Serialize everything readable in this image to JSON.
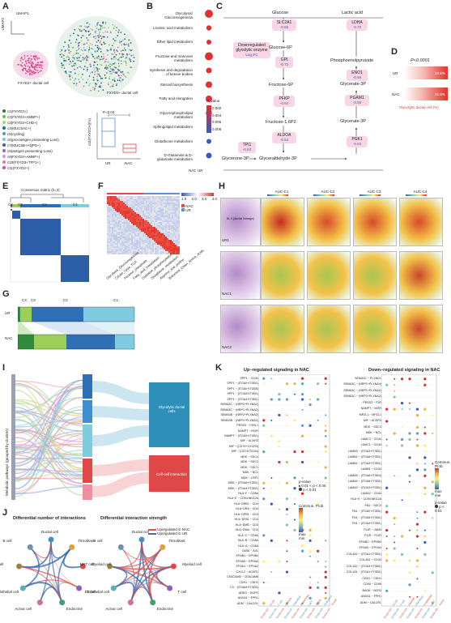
{
  "panel_labels": [
    "A",
    "B",
    "C",
    "D",
    "E",
    "F",
    "G",
    "H",
    "I",
    "J",
    "K"
  ],
  "A": {
    "axis_labels": [
      "UMAP1",
      "UMAP2"
    ],
    "annotations": [
      "FXYD2+ ductal cell",
      "FXYD3+ ductal cell"
    ],
    "legend": [
      {
        "name": "c1(FXYD3+)",
        "color": "#2a7a3b"
      },
      {
        "name": "c2(FXYD3+AMBP+)",
        "color": "#6dbb45"
      },
      {
        "name": "c3(FXYD3+CHD+)",
        "color": "#a7d670"
      },
      {
        "name": "c4(MUC5AC+)",
        "color": "#1c6e8c"
      },
      {
        "name": "c5(cycling)",
        "color": "#3fa0c0"
      },
      {
        "name": "c6(pro-antigen presenting-Loss)",
        "color": "#79c8d8"
      },
      {
        "name": "c7(MUC5B+AQP5+)",
        "color": "#3a5da8"
      },
      {
        "name": "c8(antigen presenting-Loss)",
        "color": "#8b6fb8"
      },
      {
        "name": "c9(FXYD3+AMBP+)",
        "color": "#c2a0d8"
      },
      {
        "name": "c10(FXYD3+TFF1+)",
        "color": "#e0779d"
      },
      {
        "name": "c11(FXYD2+)",
        "color": "#d94c8a"
      }
    ],
    "box": {
      "pvalue": "P=0.03",
      "ylabel": "c11(FXYD2+)(%)",
      "groups": [
        "UR",
        "NAC"
      ]
    }
  },
  "B": {
    "pathways": [
      "Glycolysis/ Gluconeogenesis",
      "Linoleic acid metabolism",
      "Ether lipid metabolism",
      "Fructose and mannose metabolism",
      "Synthesis and degradation of ketone bodies",
      "Steroid biosynthesis",
      "Fatty acid elongation",
      "Glycerophospholipid metabolism",
      "Sphingolipid metabolism",
      "Glutathione metabolism",
      "D-Glutamine & D-glutamate metabolism"
    ],
    "columns": [
      "NAC",
      "UR"
    ],
    "legend_title": "P_value",
    "legend_ticks": [
      "0.002",
      "0.004",
      "0.006",
      "0.008"
    ]
  },
  "C": {
    "top_labels": [
      "Glucose",
      "Lactic acid"
    ],
    "box_title": "Downregulated glycolytic enzyme",
    "box_sub": "Log₂FC",
    "enzymes": [
      {
        "name": "SLC2A1",
        "fc": "-0.66"
      },
      {
        "name": "GPI",
        "fc": "-0.72"
      },
      {
        "name": "PFKP",
        "fc": "-0.64"
      },
      {
        "name": "ALDOA",
        "fc": "-0.54"
      },
      {
        "name": "TPI1",
        "fc": "-0.63"
      },
      {
        "name": "LDHA",
        "fc": "-0.70"
      },
      {
        "name": "ENO1",
        "fc": "-0.66"
      },
      {
        "name": "PGAM1",
        "fc": "-0.58"
      },
      {
        "name": "PGK1",
        "fc": "-0.54"
      }
    ],
    "metabolites": [
      "Glucose-6P",
      "Fructose-6P",
      "Fructose-1,6P2",
      "Glycerone-3P",
      "Glyceraldehyde-3P",
      "Glycerate-3P",
      "Glycerate-3P",
      "Phosphoenolpyruvate"
    ]
  },
  "D": {
    "pvalue": "P<0.0001",
    "rows": [
      {
        "label": "UR",
        "value": "19.6%"
      },
      {
        "label": "NAC",
        "value": "21.9%"
      }
    ],
    "caption": "Glycolytic ductal cell (%)"
  },
  "E": {
    "title": "Consensus matrix (k=4)",
    "clusters": [
      "C1",
      "C2",
      "C3",
      "C4"
    ]
  },
  "F": {
    "legend_ticks": [
      "1.0",
      "2.0",
      "3.0",
      "4.0"
    ],
    "legend_groups": [
      "NAC",
      "UR"
    ],
    "rows": [
      "Glycolysis_Gluconeogenesis",
      "Citrate_cycle_TCA",
      "Pentose_phosphate",
      "Fatty_acid_metabolism",
      "Oxidative_phosphorylation",
      "Glutathione_metabolism",
      "Arginine_and_proline",
      "Branched_Chain_Amino_Acids"
    ]
  },
  "G": {
    "rows": [
      "UR",
      "NAC"
    ],
    "clusters": [
      "C4",
      "C3",
      "C2",
      "C1"
    ]
  },
  "H": {
    "columns": [
      "AUC-C1",
      "AUC-C2",
      "AUC-C3",
      "AUC-C4"
    ],
    "rows": [
      "UR1",
      "NAC1",
      "NAC2"
    ],
    "he_labels": [
      "Bi-4 (ductal lineage)",
      "NA",
      "FA",
      "BA"
    ]
  },
  "I": {
    "left_axis": "Metabolic pathways (grouped by clusters)",
    "right_groups": [
      "Glycolytic ductal cells",
      "Cell-cell interaction",
      "Signaling",
      "Metabolic"
    ]
  },
  "J": {
    "titles": [
      "Differential number of interactions",
      "Differential interaction strength"
    ],
    "legend": [
      {
        "name": "Upregulated in NAC",
        "color": "#d9534f"
      },
      {
        "name": "Upregulated in UR",
        "color": "#3a6fb5"
      }
    ],
    "nodes": [
      "Ductal cell",
      "Fibroblast",
      "Myeloid cell",
      "T cell",
      "Endocrine",
      "Acinar cell",
      "Endothelial cell",
      "MKT cell",
      "B cell"
    ]
  },
  "K": {
    "titles": [
      "Up−regulated signaling in NAC",
      "Down−regulated signaling in NAC"
    ],
    "legend_title": "Commun. Prob.",
    "legend_ticks": [
      "max",
      "min"
    ],
    "pvalue_title": "p-value",
    "pvalue_items": [
      "0.01 < p < 0.05",
      "p < 0.01"
    ],
    "up_pairs": [
      "SPP1 − CD44",
      "SPP1 − (ITGAV+ITGB1)",
      "SPP1 − (ITGAV+ITGB5)",
      "SPP1 − (ITGA5+ITGB1)",
      "SPP1 − (ITGA4+ITGB1)",
      "SEMA3C − (NRP2+PLXNA2)",
      "SEMA3C − (NRP1+PLXNA2)",
      "SEMA3B − (NRP2+PLXNA2)",
      "SEMA3B − (NRP1+PLXNA2)",
      "PRSS3 − F2RL1",
      "NAMPT − INSR",
      "NAMPT − (ITGA5+ITGB1)",
      "MIF − ACKR3",
      "MIF − (CD74+CXCR4)",
      "MIF − (CD74+CD44)",
      "MDK − SDC4",
      "MDK − SDC2",
      "MDK − SDC1",
      "MDK − NCL",
      "MDK − LRP1",
      "MDK − (ITGA6+ITGB1)",
      "MDK − (ITGA4+ITGB1)",
      "HLA−F − CD8A",
      "HLA−E − CD94:NKG2A",
      "HLA−DRB1 − CD4",
      "HLA−DRA − CD4",
      "HLA−DPB1 − CD4",
      "HLA−DPA1 − CD4",
      "HLA−DMB − CD4",
      "HLA−DMA − CD4",
      "HLA−C − CD8A",
      "HLA−B − CD8A",
      "HLA−A − CD8A",
      "GAS6 − AXL",
      "EFNB1 − EPHB4",
      "EFNA5 − EPHA4",
      "EFNA1 − EPHA2",
      "CXCL2 − ACKR1",
      "CEACAM5 − CEACAM6",
      "CDH1 − CDH1",
      "C3 − (ITGAM+ITGB2)",
      "AREG − EGFR",
      "ANXA1 − FPR1",
      "ADM − CALCRL"
    ],
    "down_pairs": [
      "SEMA3C − PLXND1",
      "SEMA3C − (NRP1+PLXNA4)",
      "SEMA3C − (NRP1+PLXNA2)",
      "SEMA3C − (NRP2+PLXNA2)",
      "PRSS3 − F2R",
      "NAMPT − INSR",
      "MPZL1 − MPZL1",
      "MIF − ACKR3",
      "MDK − SDC4",
      "MDK − NCL",
      "LAMC2 − CD44",
      "LAMC1 − CD44",
      "LAMB3 − (ITGA3+ITGB1)",
      "LAMB2 − (ITGA6+ITGB1)",
      "LAMB1 − (ITGA3+ITGB1)",
      "LAMB1 − CD44",
      "LAMA5 − (ITGA6+ITGB4)",
      "LAMA4 − (ITGA6+ITGB1)",
      "LAMA3 − (ITGA3+ITGB1)",
      "LAMA2 − CD44",
      "HLA−E − CD94:NKG2A",
      "FN1 − SDC4",
      "FN1 − (ITGAV+ITGB1)",
      "FN1 − (ITGA5+ITGB1)",
      "FN1 − (ITGA4+ITGB1)",
      "F11R − JAM3",
      "F11R − F11R",
      "EFNB1 − EPHB4",
      "EFNA5 − EPHA4",
      "COL4A2 − (ITGA1+ITGB1)",
      "COL4A1 − CD44",
      "COL1A2 − (ITGA3+ITGB1)",
      "COL1A1 − (ITGA1+ITGB1)",
      "CDH1 − CDH1",
      "CD99 − CD99",
      "BAG6 − NCR3",
      "ANXA1 − FPR1",
      "ADM − CALCRL"
    ],
    "columns": [
      "Ductal cell → B cell",
      "Ductal cell → T cell",
      "Ductal cell → Myeloid",
      "Ductal cell → Fibroblast",
      "Ductal cell → Endothelial",
      "Ductal cell → MKT",
      "Ductal cell → Acinar",
      "Ductal cell → Endocrine",
      "Ductal cell → Ductal"
    ]
  }
}
